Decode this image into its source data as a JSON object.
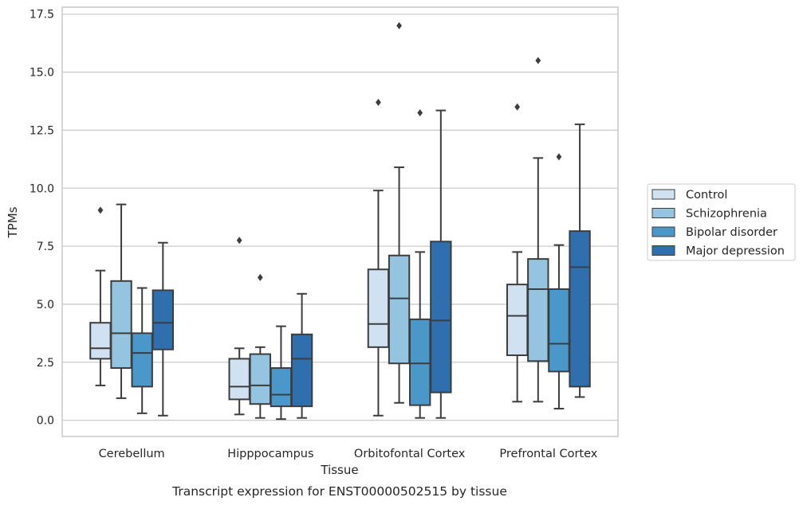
{
  "chart_data": {
    "type": "box",
    "title": "",
    "caption": "Transcript expression for ENST00000502515 by tissue",
    "xlabel": "Tissue",
    "ylabel": "TPMs",
    "ylim": [
      -0.7,
      17.8
    ],
    "yticks": [
      0.0,
      2.5,
      5.0,
      7.5,
      10.0,
      12.5,
      15.0,
      17.5
    ],
    "ytick_labels": [
      "0.0",
      "2.5",
      "5.0",
      "7.5",
      "10.0",
      "12.5",
      "15.0",
      "17.5"
    ],
    "grid": "horizontal",
    "legend_position": "outside-right",
    "categories": [
      "Cerebellum",
      "Hipppocampus",
      "Orbitofontal Cortex",
      "Prefrontal Cortex"
    ],
    "series": [
      {
        "name": "Control",
        "color": "#d0e1f2",
        "boxes": [
          {
            "whislo": 1.5,
            "q1": 2.65,
            "med": 3.1,
            "q3": 4.2,
            "whishi": 6.45,
            "fliers": [
              9.05
            ]
          },
          {
            "whislo": 0.25,
            "q1": 0.9,
            "med": 1.45,
            "q3": 2.65,
            "whishi": 3.1,
            "fliers": [
              7.75
            ]
          },
          {
            "whislo": 0.2,
            "q1": 3.15,
            "med": 4.15,
            "q3": 6.5,
            "whishi": 9.9,
            "fliers": [
              13.7
            ]
          },
          {
            "whislo": 0.8,
            "q1": 2.8,
            "med": 4.5,
            "q3": 5.85,
            "whishi": 7.25,
            "fliers": [
              13.5
            ]
          }
        ]
      },
      {
        "name": "Schizophrenia",
        "color": "#94c4df",
        "boxes": [
          {
            "whislo": 0.95,
            "q1": 2.25,
            "med": 3.75,
            "q3": 6.0,
            "whishi": 9.3,
            "fliers": []
          },
          {
            "whislo": 0.1,
            "q1": 0.7,
            "med": 1.5,
            "q3": 2.85,
            "whishi": 3.15,
            "fliers": [
              6.15
            ]
          },
          {
            "whislo": 0.75,
            "q1": 2.45,
            "med": 5.25,
            "q3": 7.1,
            "whishi": 10.9,
            "fliers": [
              17.0
            ]
          },
          {
            "whislo": 0.8,
            "q1": 2.55,
            "med": 5.65,
            "q3": 6.95,
            "whishi": 11.3,
            "fliers": [
              15.5
            ]
          }
        ]
      },
      {
        "name": "Bipolar disorder",
        "color": "#4a98c9",
        "boxes": [
          {
            "whislo": 0.3,
            "q1": 1.45,
            "med": 2.9,
            "q3": 3.75,
            "whishi": 5.7,
            "fliers": []
          },
          {
            "whislo": 0.05,
            "q1": 0.6,
            "med": 1.1,
            "q3": 2.25,
            "whishi": 4.05,
            "fliers": []
          },
          {
            "whislo": 0.1,
            "q1": 0.65,
            "med": 2.45,
            "q3": 4.35,
            "whishi": 7.25,
            "fliers": [
              13.25
            ]
          },
          {
            "whislo": 0.5,
            "q1": 2.1,
            "med": 3.3,
            "q3": 5.65,
            "whishi": 7.55,
            "fliers": [
              11.35
            ]
          }
        ]
      },
      {
        "name": "Major depression",
        "color": "#2f6fae",
        "boxes": [
          {
            "whislo": 0.2,
            "q1": 3.05,
            "med": 4.2,
            "q3": 5.6,
            "whishi": 7.65,
            "fliers": []
          },
          {
            "whislo": 0.1,
            "q1": 0.6,
            "med": 2.65,
            "q3": 3.7,
            "whishi": 5.45,
            "fliers": []
          },
          {
            "whislo": 0.1,
            "q1": 1.2,
            "med": 4.3,
            "q3": 7.7,
            "whishi": 13.35,
            "fliers": []
          },
          {
            "whislo": 1.0,
            "q1": 1.45,
            "med": 6.6,
            "q3": 8.15,
            "whishi": 12.75,
            "fliers": []
          }
        ]
      }
    ]
  }
}
